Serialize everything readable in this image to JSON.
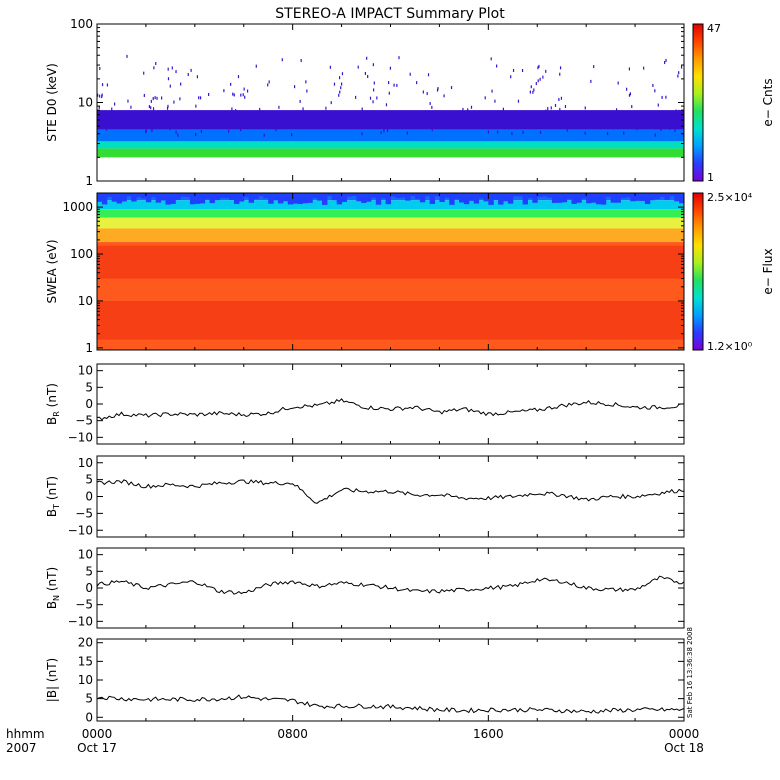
{
  "title": "STEREO-A IMPACT Summary Plot",
  "chart_data": [
    {
      "id": "ste",
      "type": "heatmap",
      "ylabel": "STE D0 (keV)",
      "yscale": "log",
      "ylim": [
        1,
        100
      ],
      "yticks": [
        {
          "v": 1,
          "t": "1"
        },
        {
          "v": 10,
          "t": "10"
        },
        {
          "v": 100,
          "t": "100"
        }
      ],
      "colorbar": {
        "label": "e− Cnts",
        "max_label": "47",
        "min_label": "1"
      },
      "description_bands": [
        {
          "lo": 2.0,
          "hi": 2.6,
          "color": "#33dd33"
        },
        {
          "lo": 2.6,
          "hi": 3.2,
          "color": "#00e0c0"
        },
        {
          "lo": 3.2,
          "hi": 4.5,
          "color": "#0070ff"
        },
        {
          "lo": 4.5,
          "hi": 8.0,
          "color": "#3a10d0"
        }
      ]
    },
    {
      "id": "swea",
      "type": "heatmap",
      "ylabel": "SWEA (eV)",
      "yscale": "log",
      "ylim": [
        0.9,
        2000
      ],
      "yticks": [
        {
          "v": 1,
          "t": "1"
        },
        {
          "v": 10,
          "t": "10"
        },
        {
          "v": 100,
          "t": "100"
        },
        {
          "v": 1000,
          "t": "1000"
        }
      ],
      "colorbar": {
        "label": "e− Flux",
        "max_label": "2.5×10⁴",
        "min_label": "1.2×10⁰"
      },
      "bands": [
        {
          "lo": 1400,
          "hi": 2000,
          "color": "#1a66ff"
        },
        {
          "lo": 900,
          "hi": 1400,
          "color": "#00ccee"
        },
        {
          "lo": 600,
          "hi": 900,
          "color": "#33ee55"
        },
        {
          "lo": 350,
          "hi": 600,
          "color": "#e8f040"
        },
        {
          "lo": 180,
          "hi": 350,
          "color": "#ffaa22"
        },
        {
          "lo": 0.9,
          "hi": 180,
          "color": "#ff5a1e"
        }
      ]
    },
    {
      "id": "br",
      "type": "line",
      "ylabel_main": "B",
      "ylabel_sub": "R",
      "ylabel_unit": " (nT)",
      "ylim": [
        -12,
        12
      ],
      "yticks": [
        {
          "v": -10,
          "t": "−10"
        },
        {
          "v": -5,
          "t": "−5"
        },
        {
          "v": 0,
          "t": "0"
        },
        {
          "v": 5,
          "t": "5"
        },
        {
          "v": 10,
          "t": "10"
        }
      ],
      "x": [
        0,
        1,
        2,
        3,
        4,
        5,
        6,
        7,
        8,
        9,
        10,
        11,
        12,
        13,
        14,
        15,
        16,
        17,
        18,
        19,
        20,
        21,
        22,
        23,
        24
      ],
      "values": [
        -4.5,
        -3.0,
        -3.5,
        -3.0,
        -3.2,
        -2.8,
        -3.2,
        -2.8,
        -0.8,
        -0.5,
        1.0,
        -1.0,
        -1.5,
        -1.0,
        -2.5,
        -1.5,
        -3.0,
        -2.5,
        -1.8,
        -0.5,
        0.5,
        0.0,
        -1.0,
        -1.0,
        -0.5
      ]
    },
    {
      "id": "bt",
      "type": "line",
      "ylabel_main": "B",
      "ylabel_sub": "T",
      "ylabel_unit": " (nT)",
      "ylim": [
        -12,
        12
      ],
      "yticks": [
        {
          "v": -10,
          "t": "−10"
        },
        {
          "v": -5,
          "t": "−5"
        },
        {
          "v": 0,
          "t": "0"
        },
        {
          "v": 5,
          "t": "5"
        },
        {
          "v": 10,
          "t": "10"
        }
      ],
      "x": [
        0,
        1,
        2,
        3,
        4,
        5,
        6,
        7,
        8,
        9,
        10,
        11,
        12,
        13,
        14,
        15,
        16,
        17,
        18,
        19,
        20,
        21,
        22,
        23,
        24
      ],
      "values": [
        4.0,
        4.5,
        3.0,
        3.5,
        3.0,
        4.0,
        4.5,
        4.0,
        4.0,
        -2.0,
        2.0,
        1.5,
        1.5,
        0.5,
        0.5,
        -0.5,
        -0.5,
        0.0,
        1.0,
        0.5,
        -1.0,
        0.0,
        0.0,
        1.0,
        2.0
      ]
    },
    {
      "id": "bn",
      "type": "line",
      "ylabel_main": "B",
      "ylabel_sub": "N",
      "ylabel_unit": " (nT)",
      "ylim": [
        -12,
        12
      ],
      "yticks": [
        {
          "v": -10,
          "t": "−10"
        },
        {
          "v": -5,
          "t": "−5"
        },
        {
          "v": 0,
          "t": "0"
        },
        {
          "v": 5,
          "t": "5"
        },
        {
          "v": 10,
          "t": "10"
        }
      ],
      "x": [
        0,
        1,
        2,
        3,
        4,
        5,
        6,
        7,
        8,
        9,
        10,
        11,
        12,
        13,
        14,
        15,
        16,
        17,
        18,
        19,
        20,
        21,
        22,
        23,
        24
      ],
      "values": [
        1.0,
        2.0,
        0.0,
        1.0,
        2.0,
        -1.0,
        -1.5,
        1.0,
        2.0,
        0.5,
        1.5,
        1.0,
        0.0,
        -1.0,
        -1.0,
        -0.5,
        0.0,
        0.5,
        2.5,
        2.0,
        0.0,
        -0.5,
        -0.5,
        3.0,
        1.5
      ]
    },
    {
      "id": "bmag",
      "type": "line",
      "ylabel_main": "|B| (nT)",
      "ylabel_sub": "",
      "ylabel_unit": "",
      "ylim": [
        -1,
        21
      ],
      "yticks": [
        {
          "v": 0,
          "t": "0"
        },
        {
          "v": 5,
          "t": "5"
        },
        {
          "v": 10,
          "t": "10"
        },
        {
          "v": 15,
          "t": "15"
        },
        {
          "v": 20,
          "t": "20"
        }
      ],
      "x": [
        0,
        1,
        2,
        3,
        4,
        5,
        6,
        7,
        8,
        9,
        10,
        11,
        12,
        13,
        14,
        15,
        16,
        17,
        18,
        19,
        20,
        21,
        22,
        23,
        24
      ],
      "values": [
        5.5,
        5.0,
        4.8,
        4.8,
        4.8,
        5.0,
        5.5,
        4.8,
        4.5,
        3.0,
        3.0,
        3.0,
        2.8,
        2.5,
        2.0,
        1.8,
        2.0,
        2.0,
        2.0,
        1.8,
        1.5,
        1.8,
        2.0,
        2.0,
        2.0
      ]
    }
  ],
  "xaxis": {
    "row1_label": "hhmm",
    "row2_label": "2007",
    "ticks": [
      {
        "hour": 0,
        "time": "0000",
        "date": "Oct 17"
      },
      {
        "hour": 8,
        "time": "0800",
        "date": ""
      },
      {
        "hour": 16,
        "time": "1600",
        "date": ""
      },
      {
        "hour": 24,
        "time": "0000",
        "date": "Oct 18"
      }
    ],
    "range_hours": [
      0,
      24
    ]
  },
  "timestamp": "Sat Feb 16 13:36:38 2008",
  "colors": {
    "colorbar": [
      "#7a00d8",
      "#2a3cff",
      "#00a0ff",
      "#00e0d0",
      "#22e060",
      "#aaf020",
      "#ffe000",
      "#ff9a00",
      "#ff4400",
      "#e00000"
    ]
  }
}
